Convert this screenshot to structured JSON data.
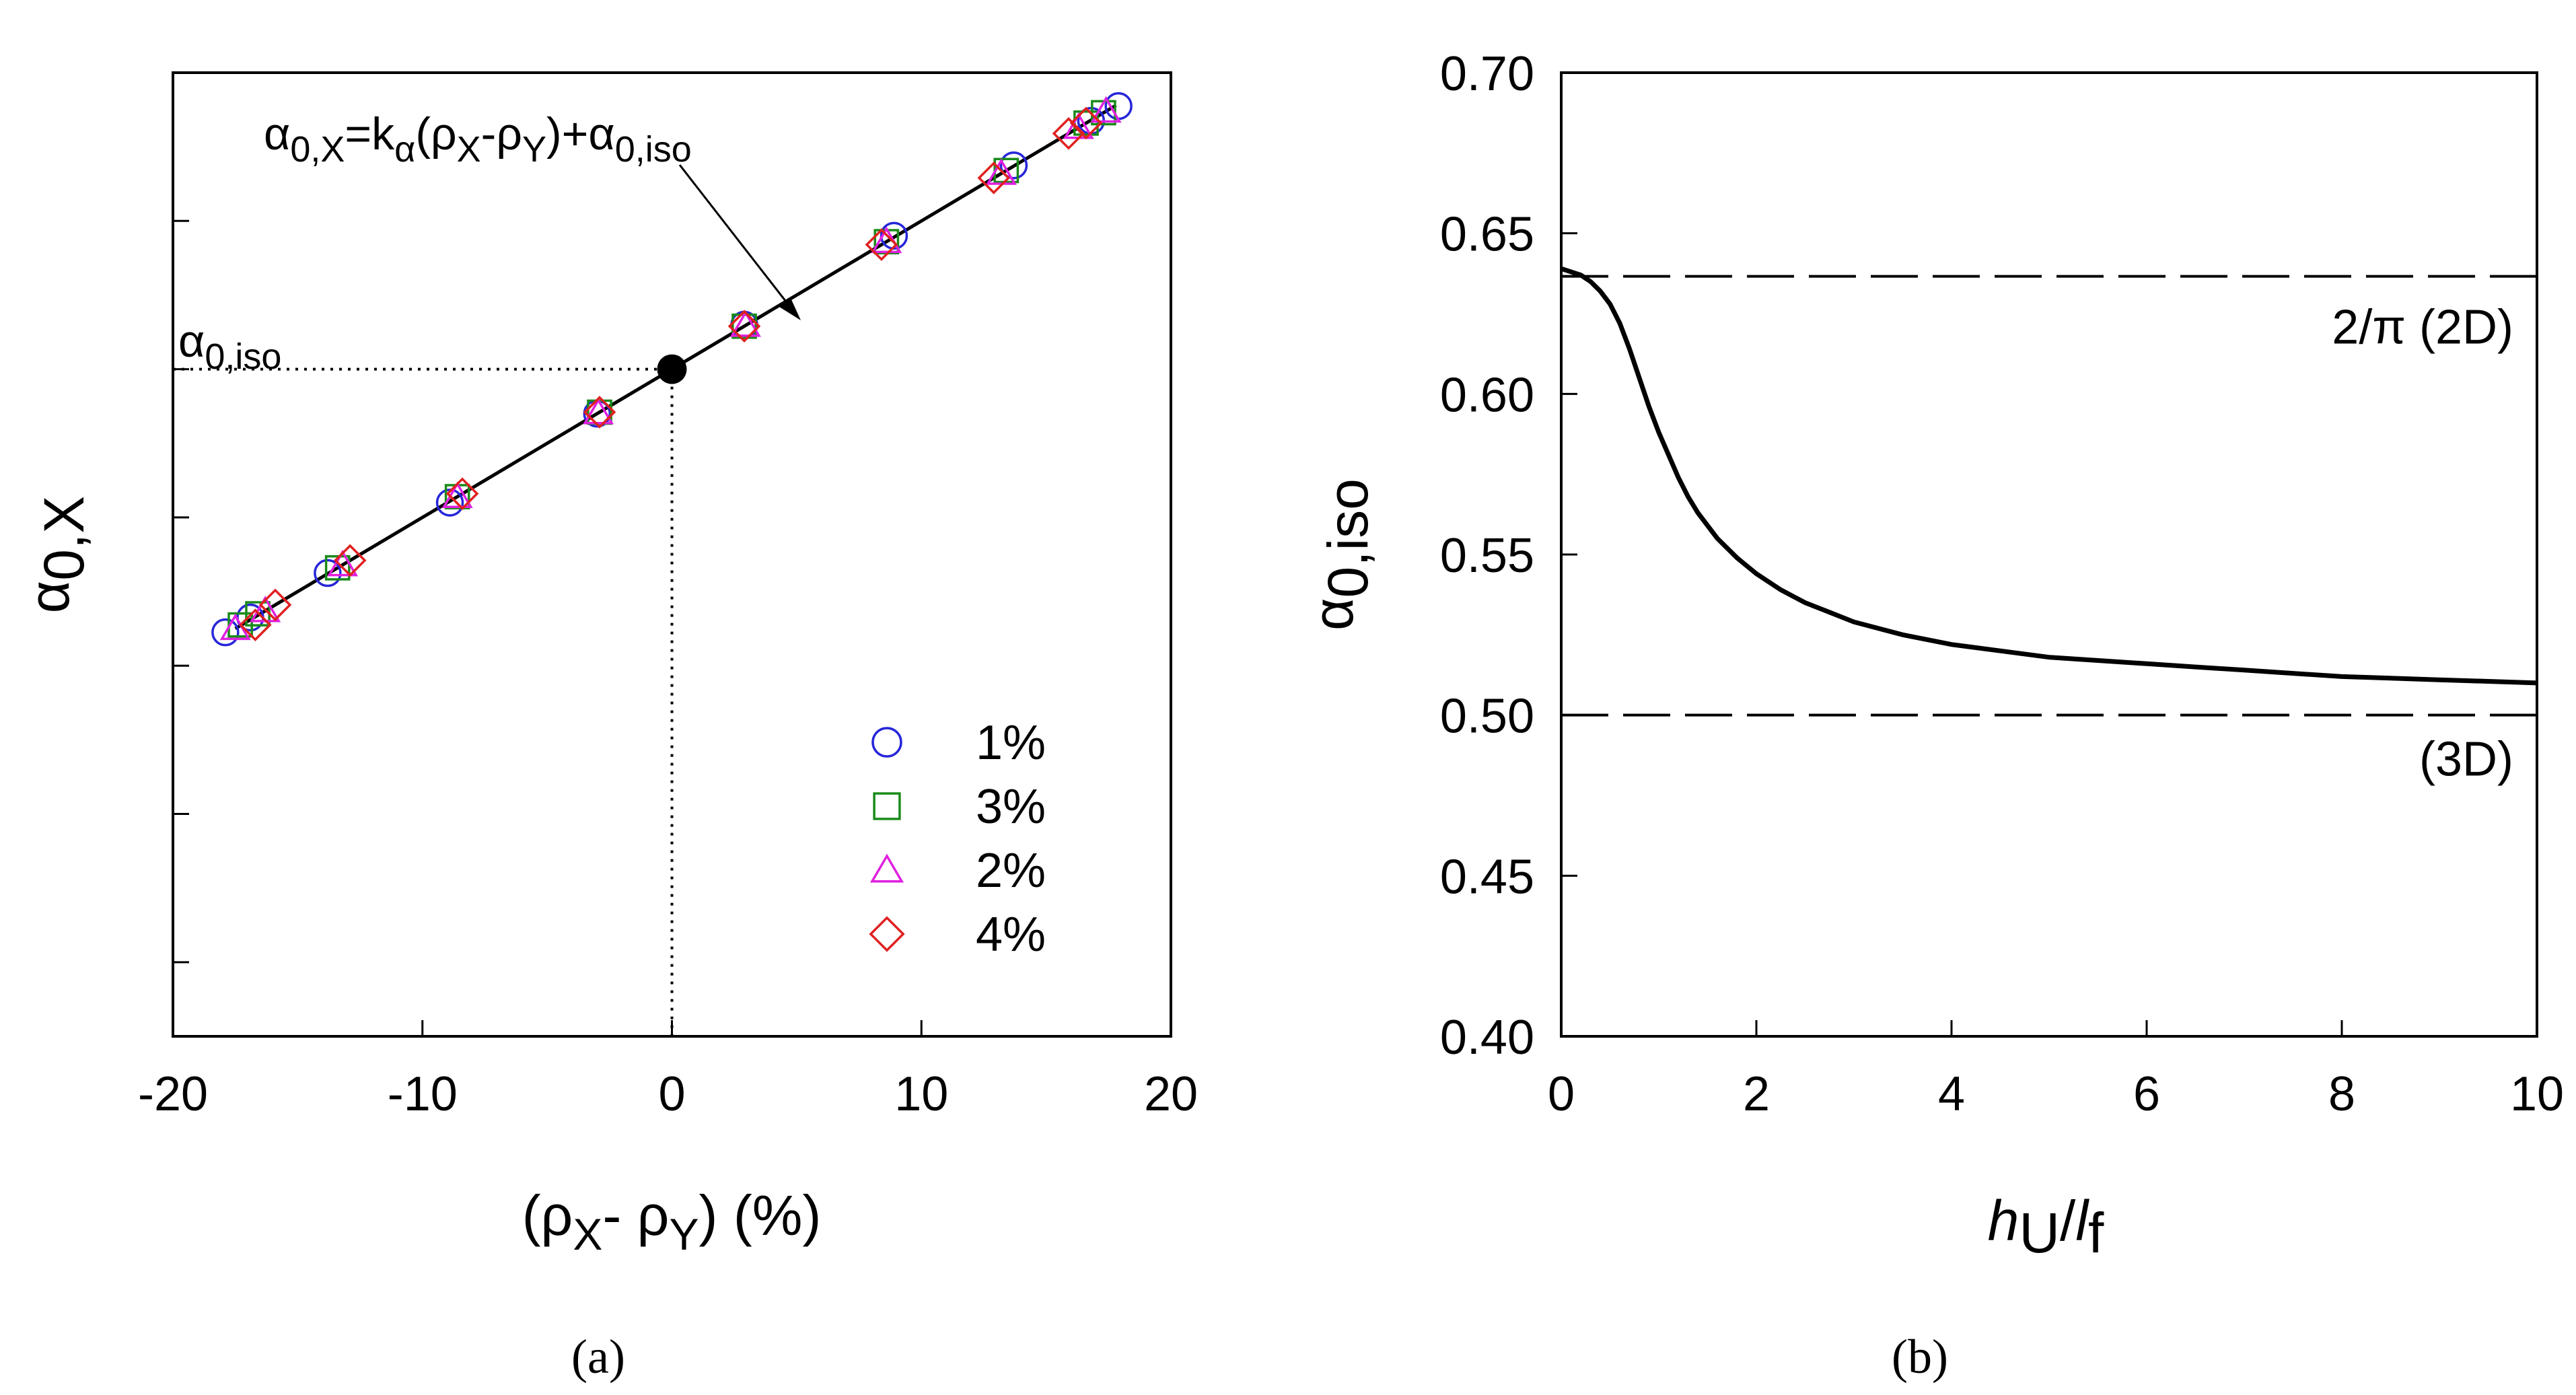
{
  "chart_data": [
    {
      "panel": "a",
      "caption": "(a)",
      "type": "scatter",
      "xlabel_parts": [
        "(ρ",
        "X",
        "- ρ",
        "Y",
        ") (%)"
      ],
      "ylabel_parts": [
        "α",
        "0,X"
      ],
      "xlim": [
        -20,
        20
      ],
      "ylim": [
        -0.9,
        0.4
      ],
      "x_ticks": [
        -20,
        -10,
        0,
        10,
        20
      ],
      "y_ticks": [
        -0.8,
        -0.6,
        -0.4,
        -0.2,
        0,
        0.2
      ],
      "y_tick_labels_shown": false,
      "grid": false,
      "legend_position": "bottom-right",
      "fit_line": {
        "x": [
          -17.5,
          17.8
        ],
        "slope": 0.02,
        "intercept": 0
      },
      "fit_equation_parts": [
        "α",
        "0,X",
        "=k",
        "α",
        "(ρ",
        "X",
        "-ρ",
        "Y",
        ")+α",
        "0,iso"
      ],
      "iso_point": {
        "x": 0,
        "y": 0
      },
      "iso_label_parts": [
        "α",
        "0,iso"
      ],
      "series": [
        {
          "name": "1%",
          "marker": "circle",
          "color": "#2626d9",
          "points": [
            [
              -17.9,
              -0.355
            ],
            [
              -16.9,
              -0.335
            ],
            [
              -13.8,
              -0.275
            ],
            [
              -8.9,
              -0.18
            ],
            [
              -3,
              -0.06
            ],
            [
              2.9,
              0.06
            ],
            [
              8.9,
              0.18
            ],
            [
              13.7,
              0.275
            ],
            [
              16.8,
              0.335
            ],
            [
              17.9,
              0.355
            ]
          ]
        },
        {
          "name": "3%",
          "marker": "square",
          "color": "#1a8a1a",
          "points": [
            [
              -17.3,
              -0.345
            ],
            [
              -16.6,
              -0.33
            ],
            [
              -13.4,
              -0.268
            ],
            [
              -8.6,
              -0.172
            ],
            [
              -2.9,
              -0.058
            ],
            [
              2.9,
              0.058
            ],
            [
              8.6,
              0.172
            ],
            [
              13.4,
              0.268
            ],
            [
              16.6,
              0.332
            ],
            [
              17.3,
              0.346
            ]
          ]
        },
        {
          "name": "2%",
          "marker": "triangle",
          "color": "#e020e0",
          "points": [
            [
              -17.5,
              -0.35
            ],
            [
              -16.3,
              -0.326
            ],
            [
              -13.2,
              -0.264
            ],
            [
              -8.6,
              -0.172
            ],
            [
              -2.95,
              -0.059
            ],
            [
              2.95,
              0.059
            ],
            [
              8.6,
              0.172
            ],
            [
              13.2,
              0.264
            ],
            [
              16.3,
              0.326
            ],
            [
              17.4,
              0.348
            ]
          ]
        },
        {
          "name": "4%",
          "marker": "diamond",
          "color": "#e02020",
          "points": [
            [
              -16.7,
              -0.345
            ],
            [
              -15.9,
              -0.318
            ],
            [
              -12.9,
              -0.258
            ],
            [
              -8.4,
              -0.168
            ],
            [
              -2.9,
              -0.058
            ],
            [
              2.9,
              0.058
            ],
            [
              8.4,
              0.168
            ],
            [
              12.9,
              0.258
            ],
            [
              15.9,
              0.318
            ],
            [
              16.6,
              0.332
            ]
          ]
        }
      ]
    },
    {
      "panel": "b",
      "caption": "(b)",
      "type": "line",
      "xlabel_parts": [
        "h",
        "U",
        "/",
        "l",
        "f"
      ],
      "ylabel_parts": [
        "α",
        "0,iso"
      ],
      "xlim": [
        0,
        10
      ],
      "ylim": [
        0.4,
        0.7
      ],
      "x_ticks": [
        0,
        2,
        4,
        6,
        8,
        10
      ],
      "y_ticks": [
        0.4,
        0.45,
        0.5,
        0.55,
        0.6,
        0.65,
        0.7
      ],
      "x_tick_labels": [
        "0",
        "2",
        "4",
        "6",
        "8",
        "10"
      ],
      "y_tick_labels": [
        "0.40",
        "0.45",
        "0.50",
        "0.55",
        "0.60",
        "0.65",
        "0.70"
      ],
      "grid": false,
      "curve": {
        "x": [
          0,
          0.1,
          0.2,
          0.3,
          0.4,
          0.5,
          0.6,
          0.7,
          0.8,
          0.9,
          1.0,
          1.1,
          1.2,
          1.3,
          1.4,
          1.5,
          1.6,
          1.8,
          2.0,
          2.25,
          2.5,
          2.75,
          3.0,
          3.5,
          4.0,
          4.5,
          5.0,
          5.5,
          6.0,
          6.5,
          7.0,
          7.5,
          8.0,
          8.5,
          9.0,
          9.5,
          10.0
        ],
        "y": [
          0.639,
          0.638,
          0.637,
          0.635,
          0.632,
          0.628,
          0.622,
          0.614,
          0.605,
          0.596,
          0.588,
          0.581,
          0.574,
          0.568,
          0.563,
          0.559,
          0.555,
          0.549,
          0.544,
          0.539,
          0.535,
          0.532,
          0.529,
          0.525,
          0.522,
          0.52,
          0.518,
          0.517,
          0.516,
          0.515,
          0.514,
          0.513,
          0.512,
          0.5115,
          0.511,
          0.5105,
          0.51
        ]
      },
      "reference_lines": [
        {
          "y": 0.6366,
          "style": "dashed",
          "label": "2/π (2D)"
        },
        {
          "y": 0.5,
          "style": "dashed",
          "label": "(3D)"
        }
      ]
    }
  ]
}
